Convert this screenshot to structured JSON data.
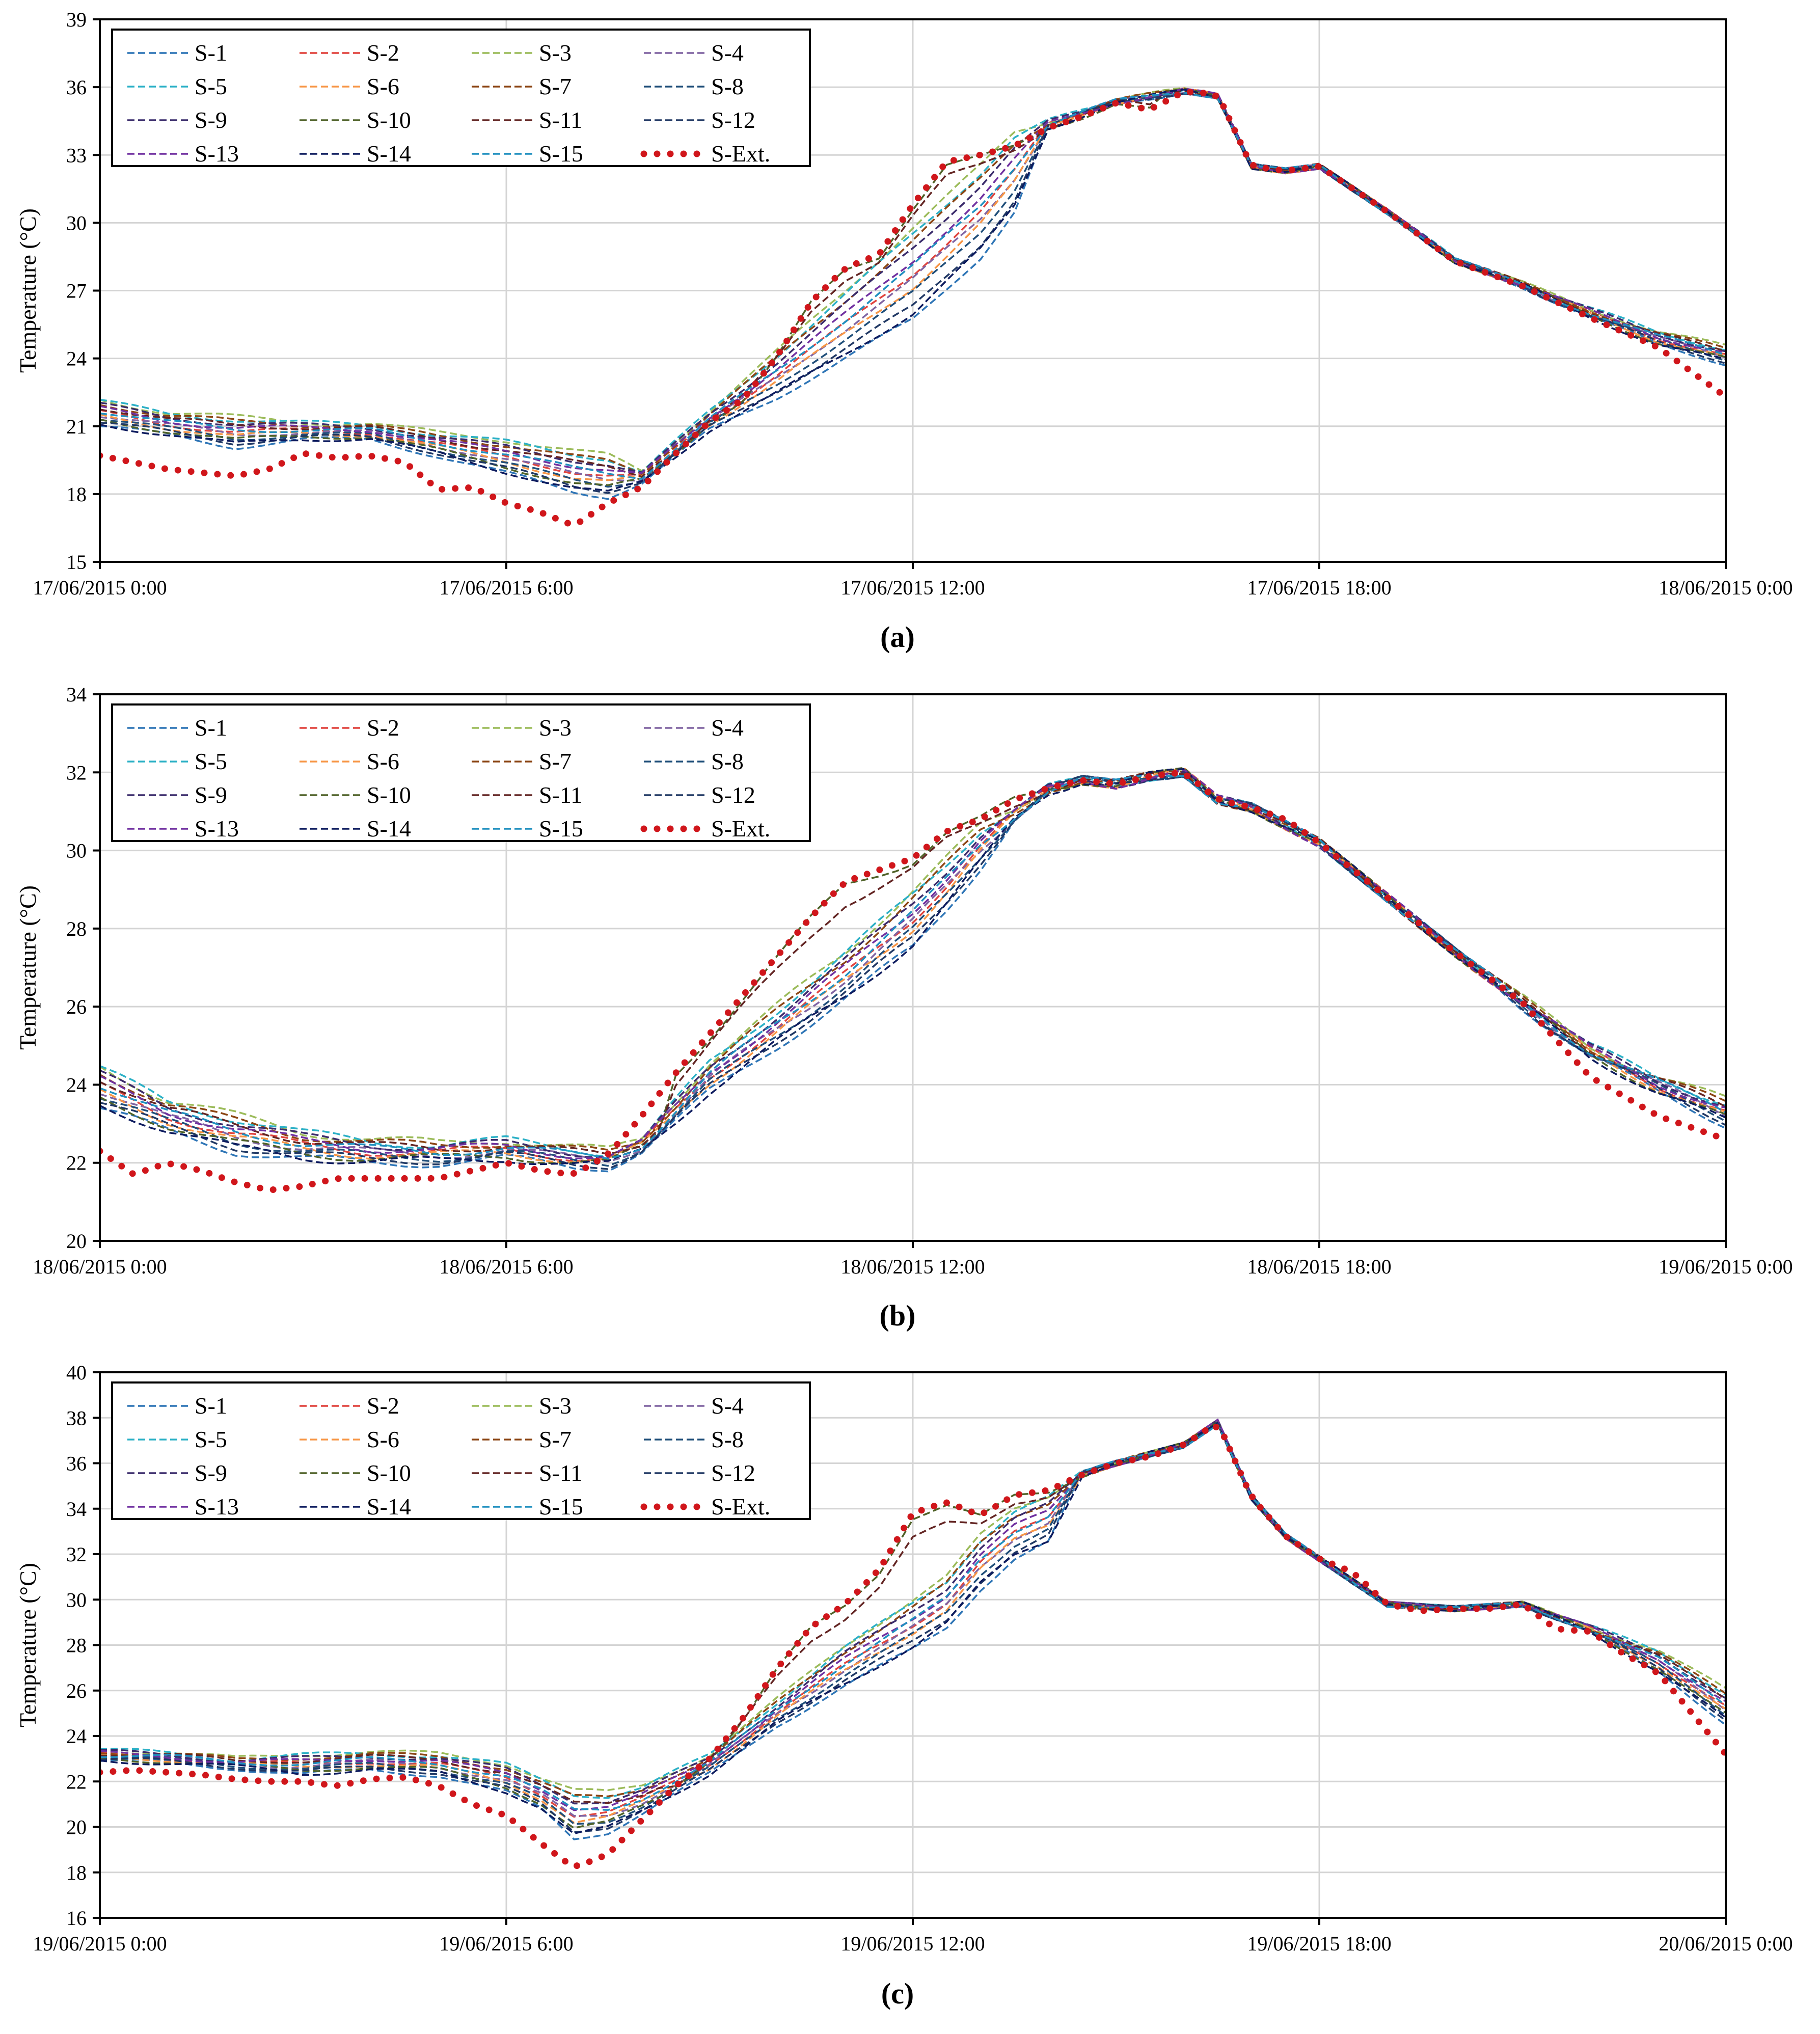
{
  "figure": {
    "panels": [
      "(a)",
      "(b)",
      "(c)"
    ]
  },
  "colors": {
    "S-1": "#2E75B6",
    "S-2": "#E0443E",
    "S-3": "#9BBB59",
    "S-4": "#8064A2",
    "S-5": "#2BB0C6",
    "S-6": "#F79646",
    "S-7": "#8B4513",
    "S-8": "#1F4E79",
    "S-9": "#3A2B6B",
    "S-10": "#4F6228",
    "S-11": "#632523",
    "S-12": "#203864",
    "S-13": "#7030A0",
    "S-14": "#0D1B5E",
    "S-15": "#1F8FBF",
    "S-Ext.": "#D0161B"
  },
  "chart_data": [
    {
      "type": "line",
      "panel_label": "(a)",
      "title": "",
      "xlabel": "",
      "ylabel": "Temperature (°C)",
      "ylim": [
        15,
        39
      ],
      "yticks": [
        15,
        18,
        21,
        24,
        27,
        30,
        33,
        36,
        39
      ],
      "xlim": [
        0,
        24
      ],
      "x_tick_labels": [
        "17/06/2015 0:00",
        "17/06/2015 6:00",
        "17/06/2015 12:00",
        "17/06/2015 18:00",
        "18/06/2015 0:00"
      ],
      "legend": [
        "S-1",
        "S-2",
        "S-3",
        "S-4",
        "S-5",
        "S-6",
        "S-7",
        "S-8",
        "S-9",
        "S-10",
        "S-11",
        "S-12",
        "S-13",
        "S-14",
        "S-15",
        "S-Ext."
      ],
      "legend_position": "top-left",
      "grid": true,
      "ext_series": {
        "x": [
          0,
          1,
          2,
          2.5,
          3,
          3.5,
          4,
          4.5,
          5,
          5.5,
          6,
          6.5,
          7,
          7.5,
          8,
          8.5,
          9,
          9.5,
          10,
          10.5,
          11,
          11.5,
          12,
          12.5,
          13,
          13.5,
          14,
          14.5,
          15,
          15.5,
          16,
          16.5,
          17,
          17.5,
          18,
          19,
          20,
          21,
          22,
          23,
          24
        ],
        "y": [
          19.7,
          19.1,
          18.8,
          19.1,
          19.8,
          19.6,
          19.7,
          19.4,
          18.2,
          18.3,
          17.6,
          17.2,
          16.6,
          17.6,
          18.3,
          19.8,
          21.2,
          22.2,
          24.1,
          26.5,
          28.0,
          28.6,
          30.8,
          32.7,
          33.0,
          33.4,
          34.2,
          34.7,
          35.3,
          35.0,
          35.8,
          35.7,
          32.5,
          32.3,
          32.5,
          30.5,
          28.3,
          27.2,
          25.8,
          24.5,
          22.3
        ]
      },
      "sensor_band": {
        "x": [
          0,
          1,
          2,
          3,
          4,
          5,
          6,
          7,
          7.5,
          8,
          9,
          10,
          11,
          12,
          13,
          13.5,
          14,
          15,
          16,
          16.5,
          17,
          17.5,
          18,
          19,
          20,
          21,
          22,
          23,
          24
        ],
        "low": [
          21.0,
          20.6,
          20.1,
          20.4,
          20.4,
          19.7,
          18.9,
          18.1,
          17.9,
          18.5,
          20.8,
          22.3,
          24.0,
          25.7,
          28.5,
          30.5,
          34.2,
          35.3,
          35.8,
          35.6,
          32.5,
          32.3,
          32.5,
          30.5,
          28.3,
          27.2,
          25.8,
          24.6,
          23.8
        ],
        "high": [
          22.2,
          21.6,
          21.4,
          21.2,
          21.1,
          20.7,
          20.4,
          19.9,
          19.7,
          19.0,
          21.7,
          24.3,
          27.0,
          29.8,
          32.5,
          34.0,
          34.5,
          35.4,
          35.9,
          35.6,
          32.5,
          32.3,
          32.5,
          30.5,
          28.4,
          27.3,
          26.2,
          25.2,
          24.5
        ]
      }
    },
    {
      "type": "line",
      "panel_label": "(b)",
      "title": "",
      "xlabel": "",
      "ylabel": "Temperature (°C)",
      "ylim": [
        20,
        34
      ],
      "yticks": [
        20,
        22,
        24,
        26,
        28,
        30,
        32,
        34
      ],
      "xlim": [
        0,
        24
      ],
      "x_tick_labels": [
        "18/06/2015 0:00",
        "18/06/2015 6:00",
        "18/06/2015 12:00",
        "18/06/2015 18:00",
        "19/06/2015 0:00"
      ],
      "legend": [
        "S-1",
        "S-2",
        "S-3",
        "S-4",
        "S-5",
        "S-6",
        "S-7",
        "S-8",
        "S-9",
        "S-10",
        "S-11",
        "S-12",
        "S-13",
        "S-14",
        "S-15",
        "S-Ext."
      ],
      "legend_position": "top-left",
      "grid": true,
      "ext_series": {
        "x": [
          0,
          0.5,
          1,
          1.5,
          2,
          2.5,
          3,
          3.5,
          4,
          4.5,
          5,
          5.5,
          6,
          6.5,
          7,
          7.5,
          8,
          8.5,
          9,
          9.5,
          10,
          10.5,
          11,
          11.5,
          12,
          12.5,
          13,
          13.5,
          14,
          14.5,
          15,
          15.5,
          16,
          16.5,
          17,
          17.5,
          18,
          19,
          20,
          21,
          22,
          23,
          24
        ],
        "y": [
          22.3,
          21.7,
          22.0,
          21.8,
          21.5,
          21.3,
          21.4,
          21.6,
          21.6,
          21.6,
          21.6,
          21.8,
          22.0,
          21.8,
          21.7,
          22.2,
          23.2,
          24.3,
          25.3,
          26.3,
          27.3,
          28.3,
          29.2,
          29.5,
          29.8,
          30.5,
          30.8,
          31.3,
          31.6,
          31.8,
          31.7,
          31.9,
          32.0,
          31.3,
          31.1,
          30.8,
          30.2,
          28.8,
          27.4,
          26.1,
          24.2,
          23.2,
          22.6
        ]
      },
      "sensor_band": {
        "x": [
          0,
          1,
          2,
          3,
          4,
          5,
          6,
          7,
          7.5,
          8,
          9,
          10,
          11,
          12,
          12.5,
          13,
          13.5,
          14,
          14.5,
          15,
          15.5,
          16,
          16.5,
          17,
          18,
          19,
          20,
          21,
          22,
          23,
          24
        ],
        "low": [
          23.4,
          22.8,
          22.3,
          22.1,
          22.0,
          22.0,
          22.1,
          21.9,
          21.9,
          22.3,
          23.8,
          25.0,
          26.2,
          27.5,
          28.5,
          29.6,
          30.8,
          31.5,
          31.8,
          31.7,
          31.9,
          32.0,
          31.3,
          31.1,
          30.2,
          28.8,
          27.4,
          26.0,
          24.7,
          23.8,
          23.0
        ],
        "high": [
          24.5,
          23.6,
          23.2,
          22.8,
          22.6,
          22.5,
          22.6,
          22.4,
          22.3,
          22.6,
          24.6,
          26.0,
          27.4,
          29.0,
          29.8,
          30.6,
          31.0,
          31.6,
          31.8,
          31.7,
          31.9,
          32.0,
          31.3,
          31.1,
          30.2,
          28.8,
          27.4,
          26.2,
          25.0,
          24.2,
          23.6
        ]
      }
    },
    {
      "type": "line",
      "panel_label": "(c)",
      "title": "",
      "xlabel": "",
      "ylabel": "Temperature (°C)",
      "ylim": [
        16,
        40
      ],
      "yticks": [
        16,
        18,
        20,
        22,
        24,
        26,
        28,
        30,
        32,
        34,
        36,
        38,
        40
      ],
      "xlim": [
        0,
        24
      ],
      "x_tick_labels": [
        "19/06/2015 0:00",
        "19/06/2015 6:00",
        "19/06/2015 12:00",
        "19/06/2015 18:00",
        "20/06/2015 0:00"
      ],
      "legend": [
        "S-1",
        "S-2",
        "S-3",
        "S-4",
        "S-5",
        "S-6",
        "S-7",
        "S-8",
        "S-9",
        "S-10",
        "S-11",
        "S-12",
        "S-13",
        "S-14",
        "S-15",
        "S-Ext."
      ],
      "legend_position": "top-left",
      "grid": true,
      "ext_series": {
        "x": [
          0,
          0.5,
          1,
          1.5,
          2,
          2.5,
          3,
          3.5,
          4,
          4.5,
          5,
          5.5,
          6,
          6.5,
          7,
          7.5,
          8,
          8.5,
          9,
          9.5,
          10,
          10.5,
          11,
          11.5,
          12,
          12.5,
          13,
          13.5,
          14,
          14.5,
          15,
          15.5,
          16,
          16.5,
          17,
          17.5,
          18,
          18.5,
          19,
          19.5,
          20,
          20.5,
          21,
          21.5,
          22,
          22.5,
          23,
          23.5,
          24
        ],
        "y": [
          22.4,
          22.5,
          22.4,
          22.3,
          22.1,
          22.0,
          22.0,
          21.8,
          22.1,
          22.2,
          21.8,
          21.0,
          20.5,
          19.3,
          18.2,
          18.8,
          20.3,
          21.8,
          23.0,
          24.8,
          27.0,
          28.8,
          29.8,
          31.3,
          33.8,
          34.3,
          33.7,
          34.6,
          34.8,
          35.5,
          36.0,
          36.3,
          36.8,
          37.8,
          34.5,
          32.8,
          31.8,
          31.2,
          29.8,
          29.5,
          29.6,
          29.6,
          29.8,
          28.7,
          28.6,
          27.6,
          26.8,
          25.0,
          23.2
        ]
      },
      "sensor_band": {
        "x": [
          0,
          1,
          2,
          3,
          4,
          5,
          6,
          6.5,
          7,
          7.5,
          8,
          9,
          10,
          11,
          12,
          12.5,
          13,
          13.5,
          14,
          14.5,
          15,
          16,
          16.5,
          17,
          17.5,
          18,
          19,
          20,
          21,
          22,
          23,
          24
        ],
        "low": [
          22.9,
          22.8,
          22.6,
          22.3,
          22.5,
          22.3,
          21.5,
          20.8,
          19.5,
          19.8,
          20.6,
          22.3,
          24.5,
          26.2,
          27.8,
          28.8,
          30.5,
          31.8,
          32.5,
          35.5,
          36.0,
          36.8,
          37.8,
          34.5,
          32.8,
          31.8,
          29.8,
          29.6,
          29.8,
          28.6,
          26.8,
          24.6
        ],
        "high": [
          23.4,
          23.3,
          23.0,
          23.2,
          23.3,
          23.2,
          22.8,
          22.2,
          21.6,
          21.5,
          21.8,
          23.2,
          25.6,
          28.0,
          30.0,
          31.0,
          32.8,
          34.0,
          34.6,
          35.6,
          36.0,
          36.8,
          37.8,
          34.5,
          32.8,
          31.8,
          29.8,
          29.6,
          29.8,
          28.8,
          27.8,
          26.0
        ]
      }
    }
  ]
}
